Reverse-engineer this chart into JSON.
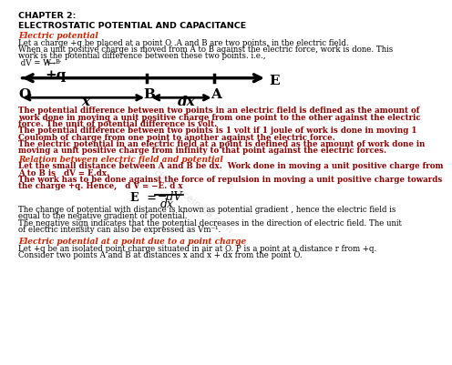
{
  "chapter": "CHAPTER 2:",
  "title": "ELECTROSTATIC POTENTIAL AND CAPACITANCE",
  "s1_head": "Electric potential",
  "s1_lines": [
    "Let a charge +q be placed at a point O .A and B are two points, in the electric field.",
    "When a unit positive charge is moved from A to B against the electric force, work is done. This",
    "work is the potential difference between these two points. i.e.,"
  ],
  "dv_line": "dV = W",
  "s2_bold": [
    "The potential difference between two points in an electric field is defined as the amount of",
    "work done in moving a unit positive charge from one point to the other against the electric",
    "force. The unit of potential difference is volt.",
    "The potential difference between two points is 1 volt if 1 joule of work is done in moving 1",
    "Coulomb of charge from one point to another against the electric force.",
    "The electric potential in an electric field at a point is defined as the amount of work done in",
    "moving a unit positive charge from infinity to that point against the electric forces."
  ],
  "s3_head": "Relation between electric field and potential",
  "s3_lines": [
    "Let the small distance between A and B be dx.  Work done in moving a unit positive charge from",
    "A to B is   dV = E.dx.",
    "The work has to be done against the force of repulsion in moving a unit positive charge towards",
    "the charge +q. Hence,   d V = −E. d x"
  ],
  "s4_lines": [
    "The change of potential with distance is known as potential gradient , hence the electric field is",
    "equal to the negative gradient of potential.",
    "The negative sign indicates that the potential decreases in the direction of electric field. The unit",
    "of electric intensity can also be expressed as Vm⁻¹."
  ],
  "s5_head": "Electric potential at a point due to a point charge",
  "s5_lines": [
    "Let +q be an isolated point charge situated in air at O. P is a point at a distance r from +q.",
    "Consider two points A and B at distances x and x + dx from the point O."
  ],
  "bg": "#ffffff",
  "black": "#000000",
  "red_head": "#cc2200",
  "bold_body": "#8B0000"
}
